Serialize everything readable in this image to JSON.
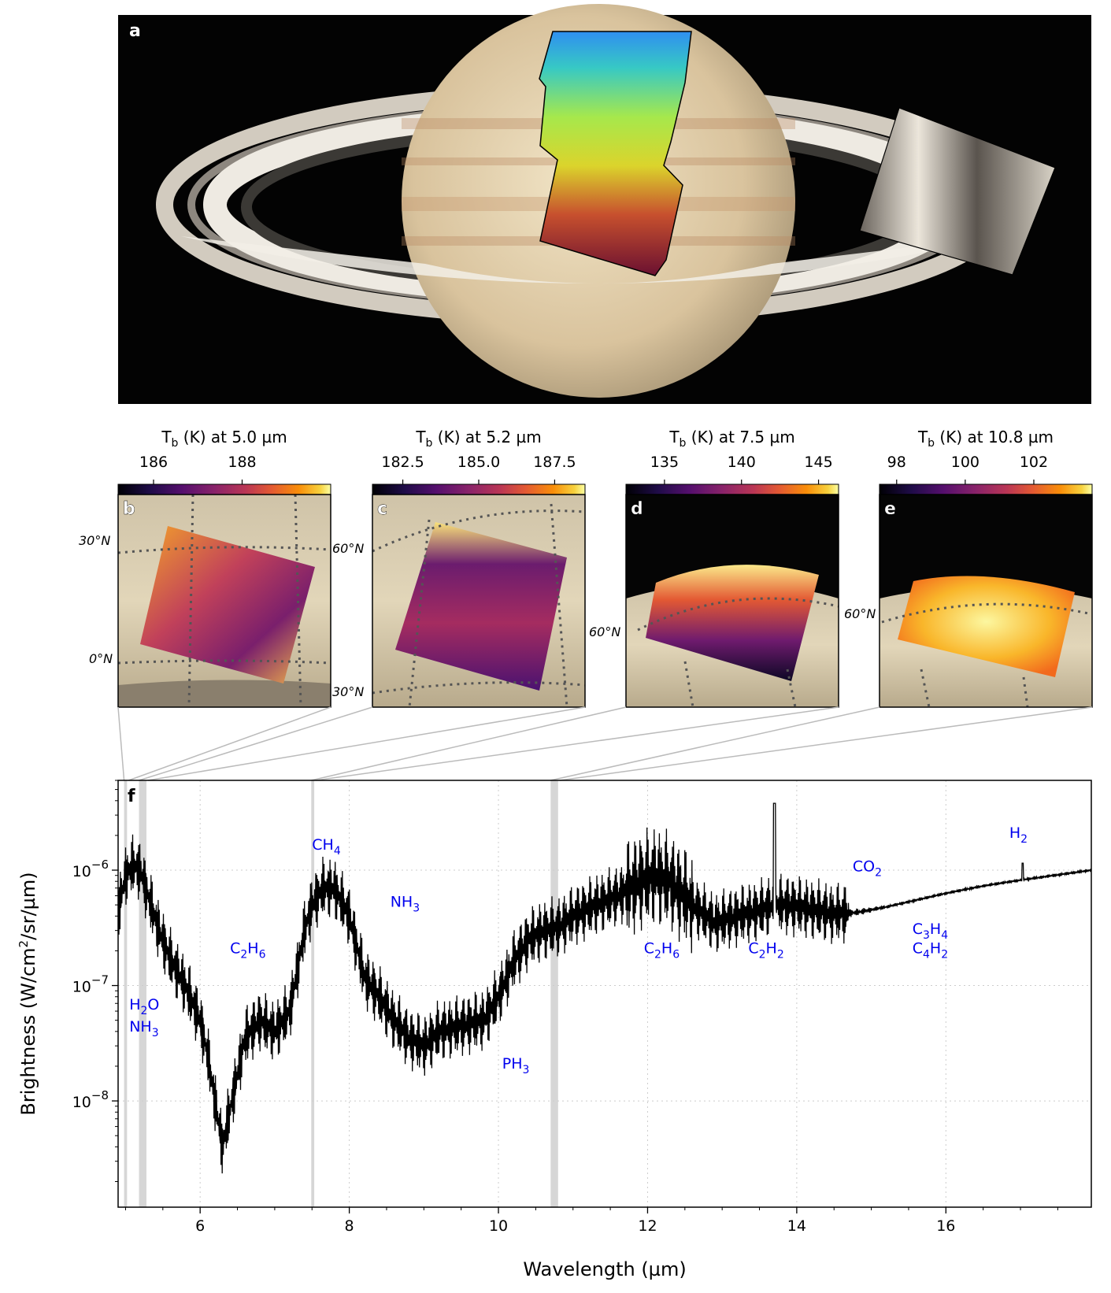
{
  "panel_a": {
    "letter": "a"
  },
  "maps": [
    {
      "letter": "b",
      "cb_title_main": "T",
      "cb_title_sub": "b",
      "cb_title_rest": " (K) at 5.0 µm",
      "cb_ticks": [
        {
          "label": "186",
          "value": 186
        },
        {
          "label": "188",
          "value": 188
        }
      ],
      "cb_range": [
        185.2,
        190.0
      ],
      "lat_labels": [
        "30°N",
        "0°N"
      ]
    },
    {
      "letter": "c",
      "cb_title_main": "T",
      "cb_title_sub": "b",
      "cb_title_rest": " (K) at 5.2 µm",
      "cb_ticks": [
        {
          "label": "182.5",
          "value": 182.5
        },
        {
          "label": "185.0",
          "value": 185.0
        },
        {
          "label": "187.5",
          "value": 187.5
        }
      ],
      "cb_range": [
        181.5,
        188.5
      ],
      "lat_labels": [
        "60°N",
        "30°N"
      ]
    },
    {
      "letter": "d",
      "cb_title_main": "T",
      "cb_title_sub": "b",
      "cb_title_rest": " (K) at 7.5 µm",
      "cb_ticks": [
        {
          "label": "135",
          "value": 135
        },
        {
          "label": "140",
          "value": 140
        },
        {
          "label": "145",
          "value": 145
        }
      ],
      "cb_range": [
        132.5,
        146.3
      ],
      "lat_labels": [
        "60°N"
      ]
    },
    {
      "letter": "e",
      "cb_title_main": "T",
      "cb_title_sub": "b",
      "cb_title_rest": " (K) at 10.8 µm",
      "cb_ticks": [
        {
          "label": "98",
          "value": 98
        },
        {
          "label": "100",
          "value": 100
        },
        {
          "label": "102",
          "value": 102
        }
      ],
      "cb_range": [
        97.5,
        103.7
      ],
      "lat_labels": [
        "60°N"
      ]
    }
  ],
  "chart_data": {
    "type": "line",
    "panel_letter": "f",
    "xlabel": "Wavelength (µm)",
    "ylabel_main": "Brightness (W/cm",
    "ylabel_sup": "2",
    "ylabel_rest": "/sr/µm)",
    "y_scale": "log",
    "xlim": [
      4.9,
      17.95
    ],
    "ylim": [
      1.2e-09,
      6e-06
    ],
    "grid": true,
    "x_ticks": [
      {
        "label": "6",
        "value": 6
      },
      {
        "label": "8",
        "value": 8
      },
      {
        "label": "10",
        "value": 10
      },
      {
        "label": "12",
        "value": 12
      },
      {
        "label": "14",
        "value": 14
      },
      {
        "label": "16",
        "value": 16
      }
    ],
    "y_ticks": [
      {
        "base": "10",
        "exp": "−6",
        "value": 1e-06
      },
      {
        "base": "10",
        "exp": "−7",
        "value": 1e-07
      },
      {
        "base": "10",
        "exp": "−8",
        "value": 1e-08
      }
    ],
    "highlight_bands": [
      [
        4.98,
        5.02
      ],
      [
        5.18,
        5.28
      ],
      [
        7.49,
        7.53
      ],
      [
        10.7,
        10.8
      ]
    ],
    "series": [
      {
        "x": [
          4.9,
          5.0,
          5.1,
          5.2,
          5.3,
          5.45,
          5.6,
          5.8,
          6.0,
          6.1,
          6.2,
          6.3,
          6.45,
          6.6,
          6.8,
          7.0,
          7.2,
          7.4,
          7.5,
          7.65,
          7.8,
          8.0,
          8.2,
          8.4,
          8.6,
          8.8,
          9.0,
          9.2,
          9.5,
          9.8,
          10.0,
          10.2,
          10.4,
          10.6,
          10.8,
          11.0,
          11.3,
          11.6,
          11.9,
          12.1,
          12.3,
          12.6,
          12.9,
          13.2,
          13.5,
          13.7,
          13.9,
          14.2,
          14.5,
          14.8,
          15.2,
          15.6,
          16.0,
          16.5,
          17.0,
          17.5,
          17.95
        ],
        "y": [
          4.5e-07,
          9e-07,
          1.1e-06,
          1e-06,
          6e-07,
          3e-07,
          1.7e-07,
          1e-07,
          5e-08,
          2.5e-08,
          1e-08,
          4e-09,
          1.2e-08,
          3.5e-08,
          5e-08,
          4e-08,
          6e-08,
          3e-07,
          5e-07,
          7e-07,
          7e-07,
          4e-07,
          1.2e-07,
          8e-08,
          5e-08,
          3.5e-08,
          3e-08,
          4e-08,
          4.5e-08,
          5e-08,
          8e-08,
          1.6e-07,
          2.5e-07,
          3e-07,
          3.2e-07,
          4e-07,
          5e-07,
          6e-07,
          8e-07,
          9e-07,
          8e-07,
          5e-07,
          3.5e-07,
          4e-07,
          4.5e-07,
          5e-07,
          5e-07,
          4.6e-07,
          4.2e-07,
          4.3e-07,
          4.8e-07,
          5.5e-07,
          6.3e-07,
          7.3e-07,
          8.2e-07,
          9.1e-07,
          1e-06
        ]
      }
    ],
    "annotations": [
      {
        "parts": [
          [
            "H",
            ""
          ],
          [
            "2",
            "sub"
          ],
          [
            "O",
            ""
          ]
        ],
        "x": 5.05,
        "y": 6.2e-08
      },
      {
        "parts": [
          [
            "NH",
            ""
          ],
          [
            "3",
            "sub"
          ]
        ],
        "x": 5.05,
        "y": 4e-08
      },
      {
        "parts": [
          [
            "C",
            ""
          ],
          [
            "2",
            "sub"
          ],
          [
            "H",
            ""
          ],
          [
            "6",
            "sub"
          ]
        ],
        "x": 6.4,
        "y": 1.9e-07
      },
      {
        "parts": [
          [
            "CH",
            ""
          ],
          [
            "4",
            "sub"
          ]
        ],
        "x": 7.5,
        "y": 1.5e-06
      },
      {
        "parts": [
          [
            "NH",
            ""
          ],
          [
            "3",
            "sub"
          ]
        ],
        "x": 8.55,
        "y": 4.8e-07
      },
      {
        "parts": [
          [
            "PH",
            ""
          ],
          [
            "3",
            "sub"
          ]
        ],
        "x": 10.05,
        "y": 1.9e-08
      },
      {
        "parts": [
          [
            "C",
            ""
          ],
          [
            "2",
            "sub"
          ],
          [
            "H",
            ""
          ],
          [
            "6",
            "sub"
          ]
        ],
        "x": 11.95,
        "y": 1.9e-07
      },
      {
        "parts": [
          [
            "C",
            ""
          ],
          [
            "2",
            "sub"
          ],
          [
            "H",
            ""
          ],
          [
            "2",
            "sub"
          ]
        ],
        "x": 13.35,
        "y": 1.9e-07
      },
      {
        "parts": [
          [
            "CO",
            ""
          ],
          [
            "2",
            "sub"
          ]
        ],
        "x": 14.75,
        "y": 9.8e-07
      },
      {
        "parts": [
          [
            "C",
            ""
          ],
          [
            "3",
            "sub"
          ],
          [
            "H",
            ""
          ],
          [
            "4",
            "sub"
          ]
        ],
        "x": 15.55,
        "y": 2.8e-07
      },
      {
        "parts": [
          [
            "C",
            ""
          ],
          [
            "4",
            "sub"
          ],
          [
            "H",
            ""
          ],
          [
            "2",
            "sub"
          ]
        ],
        "x": 15.55,
        "y": 1.9e-07
      },
      {
        "parts": [
          [
            "H",
            ""
          ],
          [
            "2",
            "sub"
          ]
        ],
        "x": 16.85,
        "y": 1.9e-06
      }
    ]
  },
  "colors": {
    "curve": "#000000",
    "band": "#cccccc",
    "annotation": "#0000ee",
    "connector": "#bbbbbb"
  }
}
